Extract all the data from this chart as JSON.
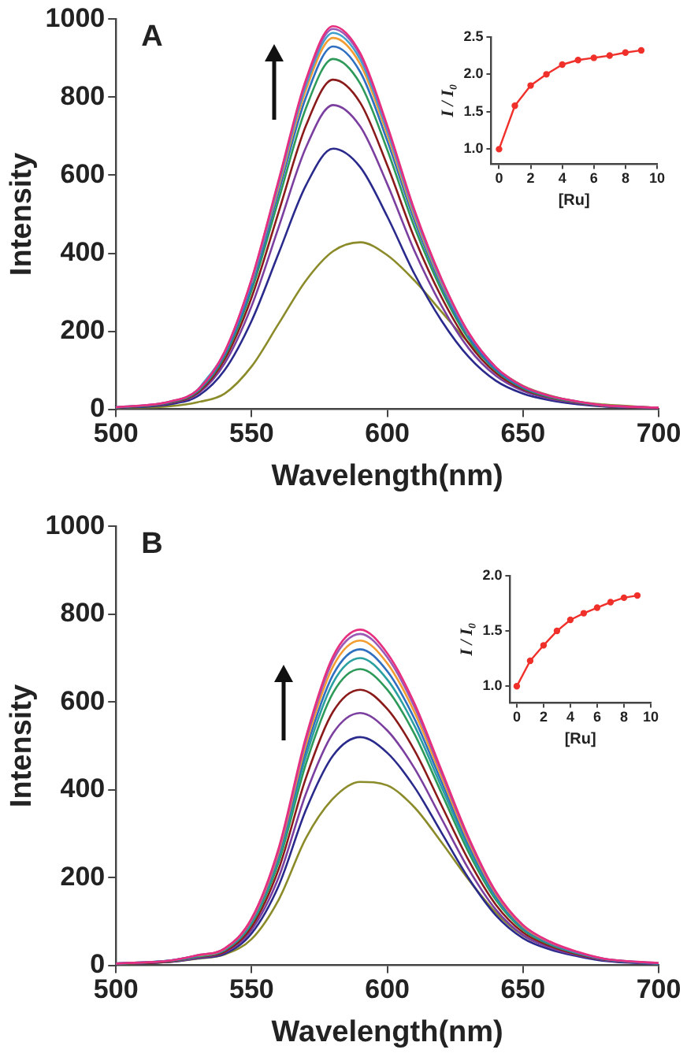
{
  "chart_data": [
    {
      "type": "line",
      "title": "A",
      "xlabel": "Wavelength(nm)",
      "ylabel": "Intensity",
      "xlim": [
        500,
        700
      ],
      "xticks": [
        500,
        550,
        600,
        650,
        700
      ],
      "ylim": [
        0,
        1000
      ],
      "yticks": [
        0,
        200,
        400,
        600,
        800,
        1000
      ],
      "x": [
        500,
        520,
        530,
        540,
        550,
        560,
        570,
        580,
        590,
        600,
        610,
        620,
        630,
        640,
        650,
        660,
        670,
        680,
        700
      ],
      "series": [
        {
          "color": "#e6307f",
          "values": [
            5,
            20,
            49,
            147,
            334,
            589,
            845,
            982,
            913,
            727,
            511,
            334,
            196,
            108,
            59,
            34,
            20,
            10,
            4
          ]
        },
        {
          "color": "#9b59b6",
          "values": [
            5,
            20,
            49,
            146,
            332,
            585,
            839,
            975,
            907,
            722,
            507,
            332,
            195,
            107,
            59,
            34,
            20,
            10,
            4
          ]
        },
        {
          "color": "#3fa0d0",
          "values": [
            null,
            null,
            48,
            145,
            328,
            579,
            830,
            965,
            897,
            714,
            502,
            328,
            193,
            106,
            null,
            null,
            null,
            null,
            null
          ]
        },
        {
          "color": "#f39c32",
          "values": [
            null,
            null,
            null,
            null,
            324,
            571,
            819,
            952,
            885,
            704,
            495,
            324,
            190,
            null,
            null,
            null,
            null,
            null,
            null
          ]
        },
        {
          "color": "#2e6fc0",
          "values": [
            5,
            19,
            47,
            140,
            316,
            558,
            800,
            930,
            865,
            688,
            484,
            316,
            186,
            102,
            56,
            33,
            19,
            9,
            4
          ]
        },
        {
          "color": "#2e9a5a",
          "values": [
            4,
            18,
            45,
            135,
            305,
            539,
            772,
            898,
            835,
            665,
            467,
            305,
            180,
            99,
            54,
            31,
            18,
            9,
            4
          ]
        },
        {
          "color": "#8b1a1a",
          "values": [
            4,
            17,
            42,
            127,
            287,
            507,
            727,
            845,
            786,
            625,
            439,
            287,
            169,
            93,
            51,
            30,
            17,
            8,
            3
          ]
        },
        {
          "color": "#7b3fa0",
          "values": [
            4,
            16,
            39,
            117,
            265,
            468,
            671,
            780,
            725,
            577,
            406,
            265,
            156,
            86,
            47,
            27,
            16,
            8,
            3
          ]
        },
        {
          "color": "#2a2a8c",
          "values": [
            3,
            13,
            33,
            100,
            227,
            401,
            574,
            668,
            621,
            494,
            347,
            227,
            134,
            73,
            40,
            23,
            13,
            7,
            3
          ]
        },
        {
          "color": "#8b8b2a",
          "values": [
            3,
            8,
            18,
            40,
            110,
            220,
            330,
            405,
            428,
            395,
            330,
            250,
            170,
            105,
            60,
            35,
            20,
            12,
            4
          ]
        }
      ]
    },
    {
      "type": "line",
      "ylabel": "I / I₀",
      "xlabel": "[Ru]",
      "xlim": [
        -0.5,
        10
      ],
      "xticks": [
        0,
        2,
        4,
        6,
        8,
        10
      ],
      "ylim": [
        0.8,
        2.5
      ],
      "yticks": [
        {
          "value": 1.0,
          "label": "1.0"
        },
        {
          "value": 1.5,
          "label": "1.5"
        },
        {
          "value": 2.0,
          "label": "2.0"
        },
        {
          "value": 2.5,
          "label": "2.5"
        }
      ],
      "marker": "circle",
      "x": [
        0,
        1,
        2,
        3,
        4,
        5,
        6,
        7,
        8,
        9
      ],
      "series": [
        {
          "color": "#f0302a",
          "values": [
            1.0,
            1.58,
            1.85,
            2.0,
            2.13,
            2.19,
            2.22,
            2.25,
            2.29,
            2.32
          ]
        }
      ]
    },
    {
      "type": "line",
      "title": "B",
      "xlabel": "Wavelength(nm)",
      "ylabel": "Intensity",
      "xlim": [
        500,
        700
      ],
      "xticks": [
        500,
        550,
        600,
        650,
        700
      ],
      "ylim": [
        0,
        1000
      ],
      "yticks": [
        0,
        200,
        400,
        600,
        800,
        1000
      ],
      "x": [
        500,
        520,
        530,
        540,
        550,
        560,
        570,
        580,
        590,
        600,
        610,
        620,
        630,
        640,
        650,
        660,
        670,
        680,
        700
      ],
      "series": [
        {
          "color": "#e6307f",
          "values": [
            4,
            11,
            23,
            38,
            107,
            268,
            520,
            704,
            765,
            711,
            597,
            444,
            291,
            168,
            92,
            54,
            31,
            15,
            5
          ]
        },
        {
          "color": "#9b59b6",
          "values": [
            4,
            11,
            23,
            38,
            106,
            264,
            513,
            695,
            755,
            702,
            589,
            438,
            287,
            166,
            91,
            53,
            30,
            15,
            5
          ]
        },
        {
          "color": "#f39c32",
          "values": [
            null,
            null,
            22,
            37,
            104,
            259,
            503,
            681,
            740,
            688,
            577,
            429,
            281,
            163,
            89,
            52,
            30,
            null,
            null
          ]
        },
        {
          "color": "#2e6fc0",
          "values": [
            4,
            11,
            22,
            36,
            101,
            252,
            490,
            662,
            720,
            670,
            562,
            418,
            274,
            158,
            86,
            50,
            29,
            14,
            4
          ]
        },
        {
          "color": "#2aa0a0",
          "values": [
            4,
            11,
            21,
            35,
            98,
            245,
            476,
            644,
            700,
            651,
            546,
            406,
            266,
            154,
            84,
            49,
            28,
            14,
            4
          ]
        },
        {
          "color": "#2e9a5a",
          "values": [
            3,
            10,
            20,
            34,
            95,
            236,
            459,
            621,
            675,
            628,
            527,
            392,
            257,
            149,
            81,
            47,
            27,
            14,
            4
          ]
        },
        {
          "color": "#8b1a1a",
          "values": [
            3,
            9,
            19,
            31,
            88,
            220,
            427,
            578,
            628,
            584,
            490,
            364,
            239,
            138,
            75,
            44,
            25,
            13,
            4
          ]
        },
        {
          "color": "#7b3fa0",
          "values": [
            3,
            9,
            17,
            29,
            81,
            201,
            391,
            529,
            575,
            535,
            449,
            334,
            219,
            127,
            69,
            40,
            23,
            12,
            3
          ]
        },
        {
          "color": "#2a2a8c",
          "values": [
            3,
            8,
            16,
            26,
            73,
            182,
            354,
            478,
            520,
            484,
            406,
            302,
            198,
            114,
            62,
            36,
            21,
            10,
            3
          ]
        },
        {
          "color": "#8b8b2a",
          "values": [
            3,
            8,
            15,
            25,
            60,
            150,
            290,
            380,
            418,
            410,
            360,
            280,
            195,
            120,
            68,
            40,
            null,
            null,
            null
          ]
        }
      ]
    },
    {
      "type": "line",
      "ylabel": "I / I₀",
      "xlabel": "[Ru]",
      "xlim": [
        -0.5,
        10
      ],
      "xticks": [
        0,
        2,
        4,
        6,
        8,
        10
      ],
      "ylim": [
        0.85,
        2.0
      ],
      "yticks": [
        {
          "value": 1.0,
          "label": "1.0"
        },
        {
          "value": 1.5,
          "label": "1.5"
        },
        {
          "value": 2.0,
          "label": "2.0"
        }
      ],
      "marker": "circle",
      "x": [
        0,
        1,
        2,
        3,
        4,
        5,
        6,
        7,
        8,
        9
      ],
      "series": [
        {
          "color": "#f0302a",
          "values": [
            1.0,
            1.23,
            1.37,
            1.5,
            1.6,
            1.66,
            1.71,
            1.76,
            1.8,
            1.82
          ]
        }
      ]
    }
  ]
}
